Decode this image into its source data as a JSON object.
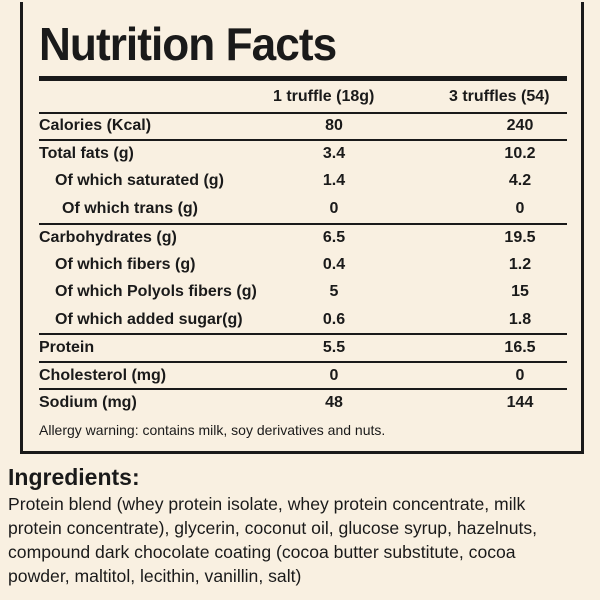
{
  "title": "Nutrition Facts",
  "columns": {
    "serving_1": "1 truffle (18g)",
    "serving_3": "3 truffles (54)"
  },
  "rows": [
    {
      "label": "Calories (Kcal)",
      "v1": "80",
      "v2": "240"
    },
    {
      "label": "Total fats (g)",
      "v1": "3.4",
      "v2": "10.2"
    },
    {
      "label": "Of which saturated (g)",
      "v1": "1.4",
      "v2": "4.2"
    },
    {
      "label": "Of which trans (g)",
      "v1": "0",
      "v2": "0"
    },
    {
      "label": "Carbohydrates (g)",
      "v1": "6.5",
      "v2": "19.5"
    },
    {
      "label": "Of which fibers (g)",
      "v1": "0.4",
      "v2": "1.2"
    },
    {
      "label": "Of which Polyols fibers (g)",
      "v1": "5",
      "v2": "15"
    },
    {
      "label": "Of which added sugar(g)",
      "v1": "0.6",
      "v2": "1.8"
    },
    {
      "label": "Protein",
      "v1": "5.5",
      "v2": "16.5"
    },
    {
      "label": "Cholesterol (mg)",
      "v1": "0",
      "v2": "0"
    },
    {
      "label": "Sodium (mg)",
      "v1": "48",
      "v2": "144"
    }
  ],
  "allergy": "Allergy warning: contains milk, soy derivatives and nuts.",
  "ingredients": {
    "title": "Ingredients:",
    "lines": [
      "Protein blend (whey protein isolate, whey protein concentrate, milk",
      "protein concentrate), glycerin, coconut oil, glucose syrup, hazelnuts,",
      "compound dark chocolate coating (cocoa butter substitute, cocoa",
      "powder, maltitol, lecithin, vanillin, salt)"
    ]
  }
}
